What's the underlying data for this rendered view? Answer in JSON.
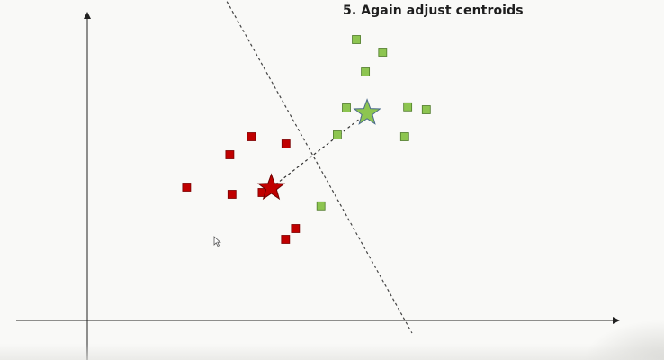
{
  "slide": {
    "title": "5. Again adjust centroids"
  },
  "colors": {
    "background": "#f9f9f7",
    "axis": "#222222",
    "red_cluster": "#c00000",
    "green_cluster": "#8dc550",
    "boundary": "#444444"
  },
  "icons": {
    "cursor": "mouse-pointer-icon",
    "red_centroid": "star-icon",
    "green_centroid": "star-icon"
  },
  "chart_data": {
    "type": "scatter",
    "xlim": [
      0,
      100
    ],
    "ylim": [
      0,
      100
    ],
    "grid": false,
    "series": [
      {
        "cluster": "red",
        "points": [
          [
            23,
            37
          ],
          [
            38,
            51
          ],
          [
            33,
            46
          ],
          [
            46,
            49
          ],
          [
            40.5,
            35.5
          ],
          [
            33.5,
            35
          ],
          [
            48.2,
            25.5
          ],
          [
            45.9,
            22.5
          ]
        ]
      },
      {
        "cluster": "green",
        "points": [
          [
            62.3,
            78
          ],
          [
            68.4,
            74.5
          ],
          [
            64.4,
            69
          ],
          [
            60,
            59
          ],
          [
            57.9,
            51.5
          ],
          [
            54.1,
            31.8
          ],
          [
            74.2,
            59.3
          ],
          [
            78.5,
            58.5
          ],
          [
            73.5,
            51
          ]
        ]
      }
    ],
    "centroids": [
      {
        "cluster": "red",
        "point": [
          42.6,
          36.8
        ]
      },
      {
        "cluster": "green",
        "point": [
          64.8,
          57.6
        ]
      }
    ],
    "centroid_link": [
      [
        42.6,
        36.8
      ],
      [
        64.8,
        57.6
      ]
    ],
    "boundary_line": [
      [
        30.5,
        92.5
      ],
      [
        75.2,
        -3.5
      ]
    ]
  }
}
